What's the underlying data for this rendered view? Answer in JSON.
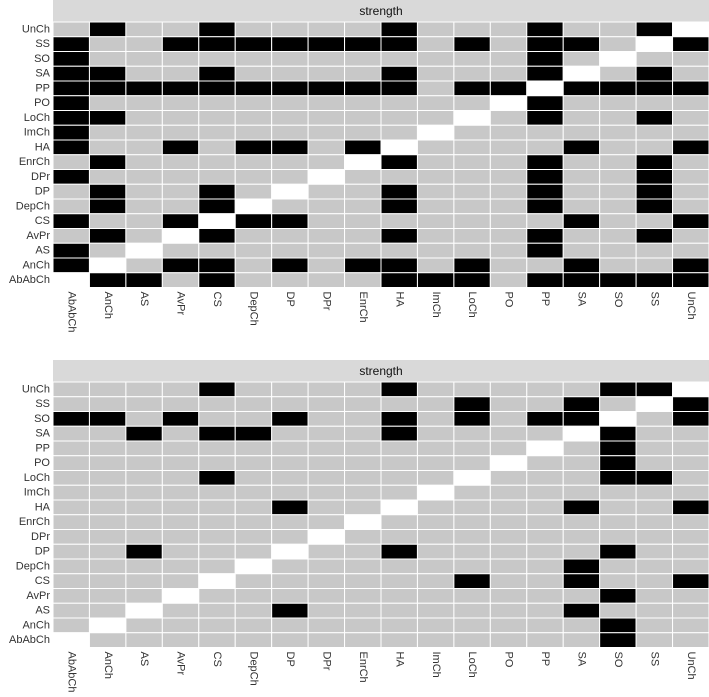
{
  "chart_data": [
    {
      "type": "heatmap",
      "title": "strength",
      "x_categories": [
        "AbAbCh",
        "AnCh",
        "AS",
        "AvPr",
        "CS",
        "DepCh",
        "DP",
        "DPr",
        "EnrCh",
        "HA",
        "ImCh",
        "LoCh",
        "PO",
        "PP",
        "SA",
        "SO",
        "SS",
        "UnCh"
      ],
      "y_categories": [
        "UnCh",
        "SS",
        "SO",
        "SA",
        "PP",
        "PO",
        "LoCh",
        "ImCh",
        "HA",
        "EnrCh",
        "DPr",
        "DP",
        "DepCh",
        "CS",
        "AvPr",
        "AS",
        "AnCh",
        "AbAbCh"
      ],
      "colors": {
        "high": "#000000",
        "low": "#c8c8c8",
        "missing": "#ffffff",
        "strip": "#d9d9d9"
      },
      "values": [
        [
          0,
          1,
          0,
          0,
          1,
          0,
          0,
          0,
          0,
          1,
          0,
          0,
          0,
          1,
          0,
          0,
          1,
          null
        ],
        [
          1,
          0,
          0,
          1,
          1,
          1,
          1,
          1,
          1,
          1,
          0,
          1,
          0,
          1,
          1,
          0,
          null,
          1
        ],
        [
          1,
          0,
          0,
          0,
          0,
          0,
          0,
          0,
          0,
          0,
          0,
          0,
          0,
          1,
          0,
          null,
          0,
          0
        ],
        [
          1,
          1,
          0,
          0,
          1,
          0,
          0,
          0,
          0,
          1,
          0,
          0,
          0,
          1,
          null,
          0,
          1,
          0
        ],
        [
          1,
          1,
          1,
          1,
          1,
          1,
          1,
          1,
          1,
          1,
          0,
          1,
          1,
          null,
          1,
          1,
          1,
          1
        ],
        [
          1,
          0,
          0,
          0,
          0,
          0,
          0,
          0,
          0,
          0,
          0,
          0,
          null,
          1,
          0,
          0,
          0,
          0
        ],
        [
          1,
          1,
          0,
          0,
          0,
          0,
          0,
          0,
          0,
          0,
          0,
          null,
          0,
          1,
          0,
          0,
          1,
          0
        ],
        [
          1,
          0,
          0,
          0,
          0,
          0,
          0,
          0,
          0,
          0,
          null,
          0,
          0,
          0,
          0,
          0,
          0,
          0
        ],
        [
          1,
          0,
          0,
          1,
          0,
          1,
          1,
          0,
          1,
          null,
          0,
          0,
          0,
          0,
          1,
          0,
          0,
          1
        ],
        [
          0,
          1,
          0,
          0,
          0,
          0,
          0,
          0,
          null,
          1,
          0,
          0,
          0,
          1,
          0,
          0,
          1,
          0
        ],
        [
          1,
          0,
          0,
          0,
          0,
          0,
          0,
          null,
          0,
          0,
          0,
          0,
          0,
          1,
          0,
          0,
          1,
          0
        ],
        [
          0,
          1,
          0,
          0,
          1,
          0,
          null,
          0,
          0,
          1,
          0,
          0,
          0,
          1,
          0,
          0,
          1,
          0
        ],
        [
          0,
          1,
          0,
          0,
          1,
          null,
          0,
          0,
          0,
          1,
          0,
          0,
          0,
          1,
          0,
          0,
          1,
          0
        ],
        [
          1,
          0,
          0,
          1,
          null,
          1,
          1,
          0,
          0,
          0,
          0,
          0,
          0,
          0,
          1,
          0,
          0,
          1
        ],
        [
          0,
          1,
          0,
          null,
          1,
          0,
          0,
          0,
          0,
          1,
          0,
          0,
          0,
          1,
          0,
          0,
          1,
          0
        ],
        [
          1,
          0,
          null,
          0,
          0,
          0,
          0,
          0,
          0,
          0,
          0,
          0,
          0,
          1,
          0,
          0,
          0,
          0
        ],
        [
          1,
          null,
          0,
          1,
          1,
          0,
          1,
          0,
          1,
          1,
          0,
          1,
          0,
          0,
          1,
          0,
          0,
          1
        ],
        [
          null,
          1,
          1,
          0,
          1,
          0,
          0,
          0,
          0,
          1,
          1,
          1,
          0,
          1,
          1,
          1,
          1,
          1
        ]
      ]
    },
    {
      "type": "heatmap",
      "title": "strength",
      "x_categories": [
        "AbAbCh",
        "AnCh",
        "AS",
        "AvPr",
        "CS",
        "DepCh",
        "DP",
        "DPr",
        "EnrCh",
        "HA",
        "ImCh",
        "LoCh",
        "PO",
        "PP",
        "SA",
        "SO",
        "SS",
        "UnCh"
      ],
      "y_categories": [
        "UnCh",
        "SS",
        "SO",
        "SA",
        "PP",
        "PO",
        "LoCh",
        "ImCh",
        "HA",
        "EnrCh",
        "DPr",
        "DP",
        "DepCh",
        "CS",
        "AvPr",
        "AS",
        "AnCh",
        "AbAbCh"
      ],
      "colors": {
        "high": "#000000",
        "low": "#c8c8c8",
        "missing": "#ffffff",
        "strip": "#d9d9d9"
      },
      "values": [
        [
          0,
          0,
          0,
          0,
          1,
          0,
          0,
          0,
          0,
          1,
          0,
          0,
          0,
          0,
          0,
          1,
          1,
          null
        ],
        [
          0,
          0,
          0,
          0,
          0,
          0,
          0,
          0,
          0,
          0,
          0,
          1,
          0,
          0,
          1,
          0,
          null,
          1
        ],
        [
          1,
          1,
          0,
          1,
          0,
          0,
          1,
          0,
          0,
          1,
          0,
          1,
          0,
          1,
          1,
          null,
          0,
          1
        ],
        [
          0,
          0,
          1,
          0,
          1,
          1,
          0,
          0,
          0,
          1,
          0,
          0,
          0,
          0,
          null,
          1,
          0,
          0
        ],
        [
          0,
          0,
          0,
          0,
          0,
          0,
          0,
          0,
          0,
          0,
          0,
          0,
          0,
          null,
          0,
          1,
          0,
          0
        ],
        [
          0,
          0,
          0,
          0,
          0,
          0,
          0,
          0,
          0,
          0,
          0,
          0,
          null,
          0,
          0,
          1,
          0,
          0
        ],
        [
          0,
          0,
          0,
          0,
          1,
          0,
          0,
          0,
          0,
          0,
          0,
          null,
          0,
          0,
          0,
          1,
          1,
          0
        ],
        [
          0,
          0,
          0,
          0,
          0,
          0,
          0,
          0,
          0,
          0,
          null,
          0,
          0,
          0,
          0,
          0,
          0,
          0
        ],
        [
          0,
          0,
          0,
          0,
          0,
          0,
          1,
          0,
          0,
          null,
          0,
          0,
          0,
          0,
          1,
          0,
          0,
          1
        ],
        [
          0,
          0,
          0,
          0,
          0,
          0,
          0,
          0,
          null,
          0,
          0,
          0,
          0,
          0,
          0,
          0,
          0,
          0
        ],
        [
          0,
          0,
          0,
          0,
          0,
          0,
          0,
          null,
          0,
          0,
          0,
          0,
          0,
          0,
          0,
          0,
          0,
          0
        ],
        [
          0,
          0,
          1,
          0,
          0,
          0,
          null,
          0,
          0,
          1,
          0,
          0,
          0,
          0,
          0,
          1,
          0,
          0
        ],
        [
          0,
          0,
          0,
          0,
          0,
          null,
          0,
          0,
          0,
          0,
          0,
          0,
          0,
          0,
          1,
          0,
          0,
          0
        ],
        [
          0,
          0,
          0,
          0,
          null,
          0,
          0,
          0,
          0,
          0,
          0,
          1,
          0,
          0,
          1,
          0,
          0,
          1
        ],
        [
          0,
          0,
          0,
          null,
          0,
          0,
          0,
          0,
          0,
          0,
          0,
          0,
          0,
          0,
          0,
          1,
          0,
          0
        ],
        [
          0,
          0,
          null,
          0,
          0,
          0,
          1,
          0,
          0,
          0,
          0,
          0,
          0,
          0,
          1,
          0,
          0,
          0
        ],
        [
          0,
          null,
          0,
          0,
          0,
          0,
          0,
          0,
          0,
          0,
          0,
          0,
          0,
          0,
          0,
          1,
          0,
          0
        ],
        [
          null,
          0,
          0,
          0,
          0,
          0,
          0,
          0,
          0,
          0,
          0,
          0,
          0,
          0,
          0,
          1,
          0,
          0
        ]
      ]
    }
  ]
}
